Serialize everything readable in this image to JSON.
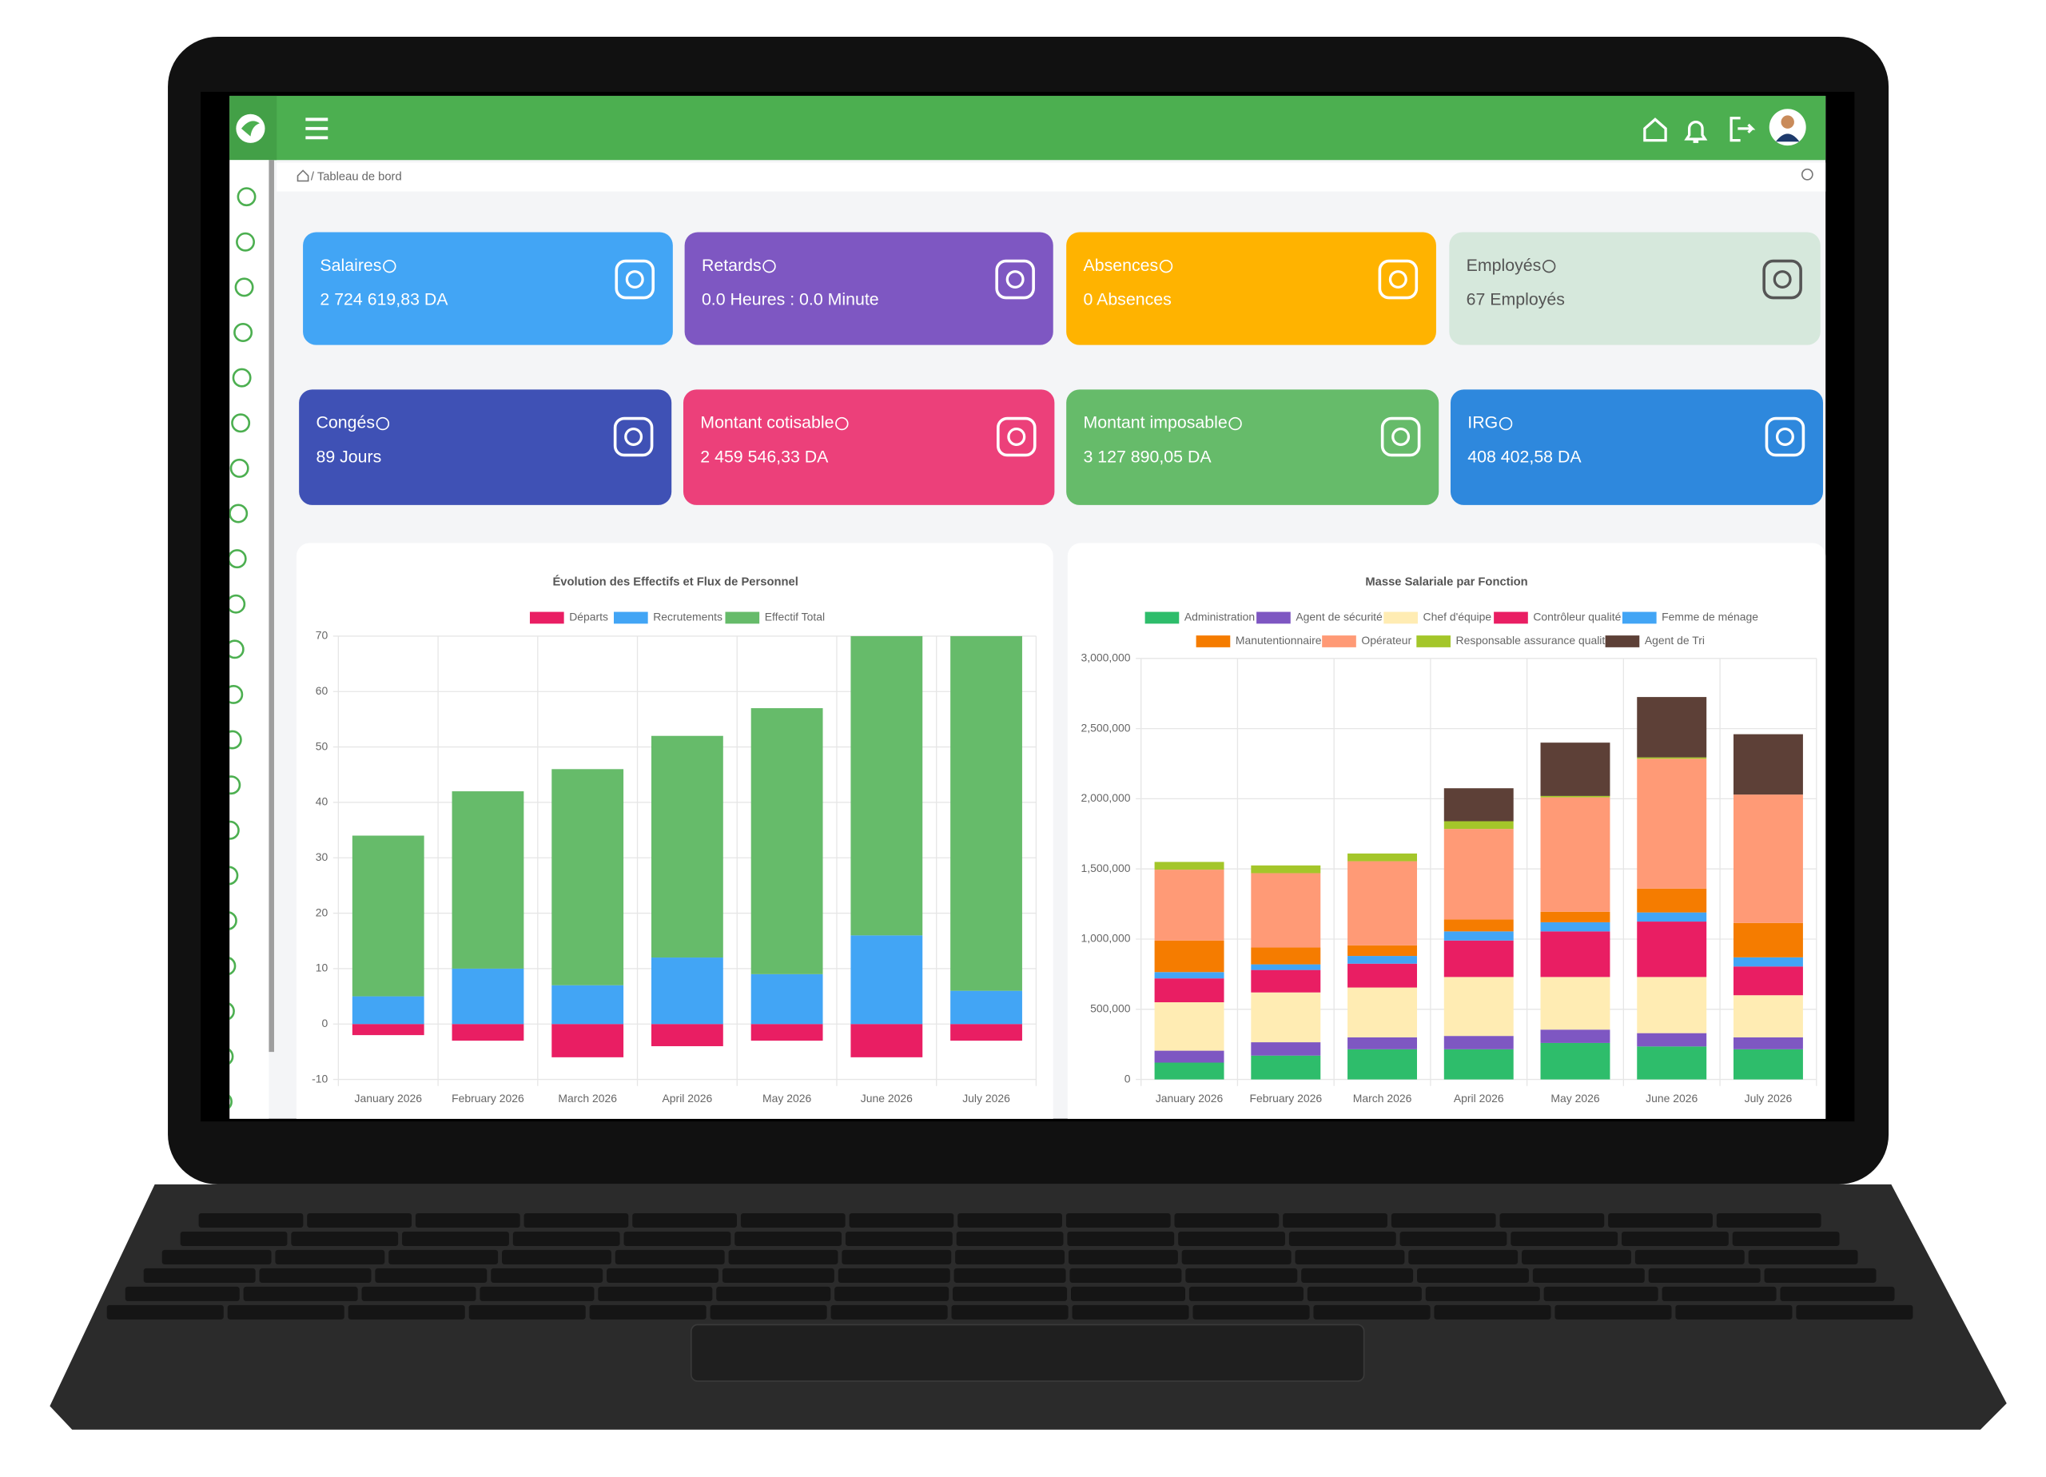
{
  "breadcrumb": "/ Tableau de bord",
  "cards": [
    {
      "title": "Salaires",
      "value": "2 724 619,83 DA",
      "color": "#42a5f5",
      "text_color": "#ffffff"
    },
    {
      "title": "Retards",
      "value": "0.0 Heures : 0.0 Minute",
      "color": "#7e57c2",
      "text_color": "#ffffff"
    },
    {
      "title": "Absences",
      "value": "0 Absences",
      "color": "#ffb300",
      "text_color": "#ffffff"
    },
    {
      "title": "Employés",
      "value": "67 Employés",
      "color": "#d6e8dc",
      "text_color": "#555555"
    },
    {
      "title": "Congés",
      "value": "89 Jours",
      "color": "#3f51b5",
      "text_color": "#ffffff"
    },
    {
      "title": "Montant cotisable",
      "value": "2 459 546,33 DA",
      "color": "#ec407a",
      "text_color": "#ffffff"
    },
    {
      "title": "Montant imposable",
      "value": "3 127 890,05 DA",
      "color": "#66bb6a",
      "text_color": "#ffffff"
    },
    {
      "title": "IRG",
      "value": "408 402,58 DA",
      "color": "#2e88dd",
      "text_color": "#ffffff"
    }
  ],
  "chart_data": [
    {
      "type": "bar",
      "stacked": true,
      "grid": true,
      "title": "Évolution des Effectifs et Flux de Personnel",
      "categories": [
        "January 2026",
        "February 2026",
        "March 2026",
        "April 2026",
        "May 2026",
        "June 2026",
        "July 2026"
      ],
      "series": [
        {
          "name": "Départs",
          "color": "#e91e63",
          "values": [
            -2,
            -3,
            -6,
            -4,
            -3,
            -6,
            -3
          ]
        },
        {
          "name": "Recrutements",
          "color": "#42a5f5",
          "values": [
            5,
            10,
            7,
            12,
            9,
            16,
            6
          ]
        },
        {
          "name": "Effectif Total",
          "color": "#66bb6a",
          "values": [
            29,
            32,
            39,
            40,
            48,
            54,
            64
          ]
        }
      ],
      "ylim": [
        -10,
        70
      ],
      "yticks": [
        -10,
        0,
        10,
        20,
        30,
        40,
        50,
        60,
        70
      ]
    },
    {
      "type": "bar",
      "stacked": true,
      "grid": true,
      "title": "Masse Salariale par Fonction",
      "categories": [
        "January 2026",
        "February 2026",
        "March 2026",
        "April 2026",
        "May 2026",
        "June 2026",
        "July 2026"
      ],
      "series": [
        {
          "name": "Administration",
          "color": "#2ebd6b",
          "values": [
            120000,
            170000,
            215000,
            215000,
            260000,
            235000,
            215000
          ]
        },
        {
          "name": "Agent de sécurité",
          "color": "#7e57c2",
          "values": [
            85000,
            95000,
            85000,
            95000,
            95000,
            95000,
            85000
          ]
        },
        {
          "name": "Chef d'équipe",
          "color": "#ffecb3",
          "values": [
            345000,
            355000,
            355000,
            420000,
            375000,
            400000,
            300000
          ]
        },
        {
          "name": "Contrôleur qualité",
          "color": "#e91e63",
          "values": [
            170000,
            160000,
            170000,
            260000,
            325000,
            395000,
            205000
          ]
        },
        {
          "name": "Femme de ménage",
          "color": "#42a5f5",
          "values": [
            45000,
            40000,
            55000,
            65000,
            65000,
            65000,
            65000
          ]
        },
        {
          "name": "Manutentionnaire",
          "color": "#f57c00",
          "values": [
            225000,
            120000,
            75000,
            85000,
            75000,
            170000,
            245000
          ]
        },
        {
          "name": "Opérateur",
          "color": "#ff9a76",
          "values": [
            505000,
            530000,
            600000,
            645000,
            815000,
            925000,
            915000
          ]
        },
        {
          "name": "Responsable assurance qualité",
          "color": "#a4c62a",
          "values": [
            55000,
            55000,
            55000,
            55000,
            10000,
            10000,
            0
          ]
        },
        {
          "name": "Agent de Tri",
          "color": "#5d4037",
          "values": [
            0,
            0,
            0,
            235000,
            380000,
            430000,
            430000
          ]
        }
      ],
      "ylim": [
        0,
        3000000
      ],
      "yticks": [
        0,
        {
          "value": 500000,
          "label": "500,000"
        },
        {
          "value": 1000000,
          "label": "1,000,000"
        },
        {
          "value": 1500000,
          "label": "1,500,000"
        },
        {
          "value": 2000000,
          "label": "2,000,000"
        },
        {
          "value": 2500000,
          "label": "2,500,000"
        },
        {
          "value": 3000000,
          "label": "3,000,000"
        }
      ]
    }
  ]
}
